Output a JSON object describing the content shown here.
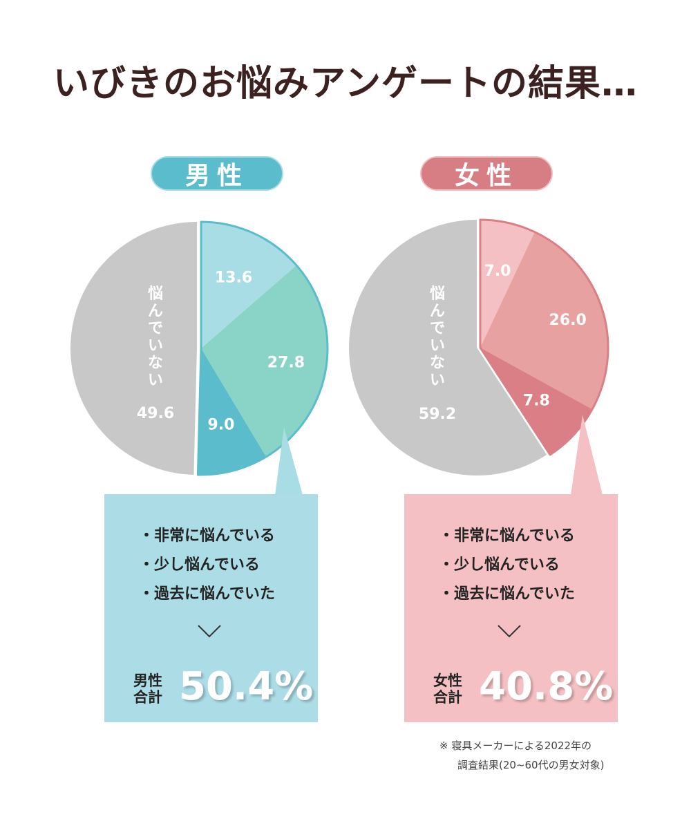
{
  "title": "いびきのお悩みアンゲートの結果…",
  "groups": {
    "male": {
      "label": "男性",
      "not_troubled_label": "悩んでいない",
      "total_label_line1": "男性",
      "total_label_line2": "合計",
      "total_value": "50.4%"
    },
    "female": {
      "label": "女性",
      "not_troubled_label": "悩んでいない",
      "total_label_line1": "女性",
      "total_label_line2": "合計",
      "total_value": "40.8%"
    }
  },
  "bullets": [
    "・非常に悩んでいる",
    "・少し悩んでいる",
    "・過去に悩んでいた"
  ],
  "note": {
    "line1": "※ 寝具メーカーによる2022年の",
    "line2": "調査結果(20~60代の男女対象)"
  },
  "colors": {
    "male_very": "#5bbccb",
    "male_some": "#8ad3c7",
    "male_past": "#a9dde5",
    "male_none": "#c8c8c8",
    "female_very": "#d97f85",
    "female_some": "#e8a1a1",
    "female_past": "#f5c0c4",
    "female_none": "#c8c8c8"
  },
  "chart_data": [
    {
      "type": "pie",
      "title": "男性",
      "categories": [
        "過去に悩んでいた",
        "非常に悩んでいる",
        "少し悩んでいる",
        "悩んでいない"
      ],
      "values": [
        13.6,
        27.8,
        9.0,
        49.6
      ],
      "labels": [
        "13.6",
        "27.8",
        "9.0",
        "49.6"
      ]
    },
    {
      "type": "pie",
      "title": "女性",
      "categories": [
        "過去に悩んでいた",
        "非常に悩んでいる",
        "少し悩んでいる",
        "悩んでいない"
      ],
      "values": [
        7.0,
        26.0,
        7.8,
        59.2
      ],
      "labels": [
        "7.0",
        "26.0",
        "7.8",
        "59.2"
      ]
    }
  ]
}
